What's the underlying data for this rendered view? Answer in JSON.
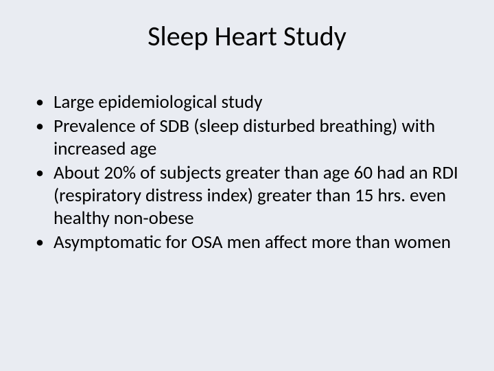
{
  "slide": {
    "background_color": "#e9ecf2",
    "text_color": "#000000",
    "title": "Sleep Heart Study",
    "title_fontsize": 40,
    "body_fontsize": 27,
    "bullets": [
      "Large epidemiological study",
      "Prevalence of SDB (sleep disturbed breathing) with increased age",
      "About 20% of subjects greater than age 60 had an RDI (respiratory distress index) greater than 15 hrs. even healthy non-obese",
      " Asymptomatic for OSA men affect more than women"
    ]
  }
}
